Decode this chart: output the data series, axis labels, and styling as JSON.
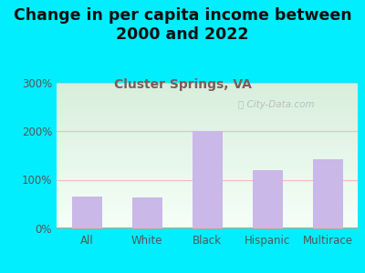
{
  "title": "Change in per capita income between\n2000 and 2022",
  "subtitle": "Cluster Springs, VA",
  "categories": [
    "All",
    "White",
    "Black",
    "Hispanic",
    "Multirace"
  ],
  "values": [
    65,
    63,
    200,
    120,
    143
  ],
  "bar_color": "#c9b8e8",
  "background_color": "#00eeff",
  "plot_bg_top": "#d8eedc",
  "plot_bg_bottom": "#f5fff8",
  "title_fontsize": 12.5,
  "subtitle_fontsize": 10,
  "subtitle_color": "#7a5c5c",
  "tick_label_color": "#555555",
  "ylim": [
    0,
    300
  ],
  "yticks": [
    0,
    100,
    200,
    300
  ],
  "watermark": "ⓘ City-Data.com",
  "grid_color": "#f2b8c0",
  "bar_edge_color": "none"
}
